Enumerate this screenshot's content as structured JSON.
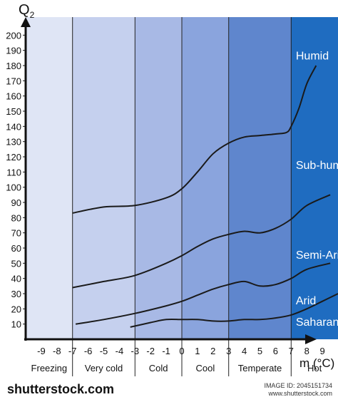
{
  "chart_data": {
    "type": "line",
    "ylabel": "Q",
    "ylabel_sub": "2",
    "xlabel": "m (°C)",
    "xlim": [
      -10,
      10
    ],
    "ylim": [
      0,
      210
    ],
    "yticks": [
      10,
      20,
      30,
      40,
      50,
      60,
      70,
      80,
      90,
      100,
      110,
      120,
      130,
      140,
      150,
      160,
      170,
      180,
      190,
      200
    ],
    "xticks": [
      -9,
      -8,
      -7,
      -6,
      -5,
      -4,
      -3,
      -2,
      -1,
      0,
      1,
      2,
      3,
      4,
      5,
      6,
      7,
      8,
      9
    ],
    "zones": [
      {
        "name": "Freezing",
        "from": -10,
        "to": -7,
        "color": "#dfe5f5"
      },
      {
        "name": "Very cold",
        "from": -7,
        "to": -3,
        "color": "#c5d0ee"
      },
      {
        "name": "Cold",
        "from": -3,
        "to": 0,
        "color": "#a8b9e5"
      },
      {
        "name": "Cool",
        "from": 0,
        "to": 3,
        "color": "#8aa4dd"
      },
      {
        "name": "Temperate",
        "from": 3,
        "to": 7,
        "color": "#5f86cd"
      },
      {
        "name": "Hot",
        "from": 7,
        "to": 10,
        "color": "#1f6cc0"
      }
    ],
    "region_labels": [
      {
        "text": "Humid",
        "x": 7.3,
        "y": 184
      },
      {
        "text": "Sub-humid",
        "x": 7.3,
        "y": 112
      },
      {
        "text": "Semi-Arid",
        "x": 7.3,
        "y": 53
      },
      {
        "text": "Arid",
        "x": 7.3,
        "y": 23
      },
      {
        "text": "Saharan",
        "x": 7.3,
        "y": 9
      }
    ],
    "series": [
      {
        "values": [
          [
            -7,
            83
          ],
          [
            -5,
            87
          ],
          [
            -3,
            88
          ],
          [
            -1,
            93
          ],
          [
            0,
            99
          ],
          [
            1,
            110
          ],
          [
            2,
            122
          ],
          [
            3,
            129
          ],
          [
            4,
            133
          ],
          [
            5,
            134
          ],
          [
            6,
            135
          ],
          [
            6.7,
            136
          ],
          [
            7,
            140
          ],
          [
            7.5,
            152
          ],
          [
            8,
            168
          ],
          [
            8.6,
            180
          ]
        ]
      },
      {
        "values": [
          [
            -7,
            34
          ],
          [
            -5,
            38
          ],
          [
            -3,
            42
          ],
          [
            -1,
            50
          ],
          [
            0,
            55
          ],
          [
            1,
            61
          ],
          [
            2,
            66
          ],
          [
            3,
            69
          ],
          [
            4,
            71
          ],
          [
            5,
            70
          ],
          [
            6,
            73
          ],
          [
            7,
            79
          ],
          [
            8,
            88
          ],
          [
            9.5,
            95
          ]
        ]
      },
      {
        "values": [
          [
            -6.8,
            10
          ],
          [
            -5,
            13
          ],
          [
            -3,
            17
          ],
          [
            -1,
            22
          ],
          [
            0,
            25
          ],
          [
            1,
            29
          ],
          [
            2,
            33
          ],
          [
            3,
            36
          ],
          [
            4,
            38
          ],
          [
            5,
            35
          ],
          [
            6,
            36
          ],
          [
            7,
            40
          ],
          [
            8,
            46
          ],
          [
            9.5,
            50
          ]
        ]
      },
      {
        "values": [
          [
            -3.3,
            8
          ],
          [
            -2,
            11
          ],
          [
            -1,
            13
          ],
          [
            0,
            13
          ],
          [
            1,
            13
          ],
          [
            2,
            12
          ],
          [
            3,
            12
          ],
          [
            4,
            13
          ],
          [
            5,
            13
          ],
          [
            6,
            14
          ],
          [
            7,
            16
          ],
          [
            8,
            20
          ],
          [
            9,
            25
          ],
          [
            10,
            30
          ]
        ]
      }
    ]
  },
  "footer": {
    "brand": "shutterstock",
    "brand_suffix": ".com",
    "image_id": "IMAGE ID: 2045151734",
    "site": "www.shutterstock.com"
  }
}
